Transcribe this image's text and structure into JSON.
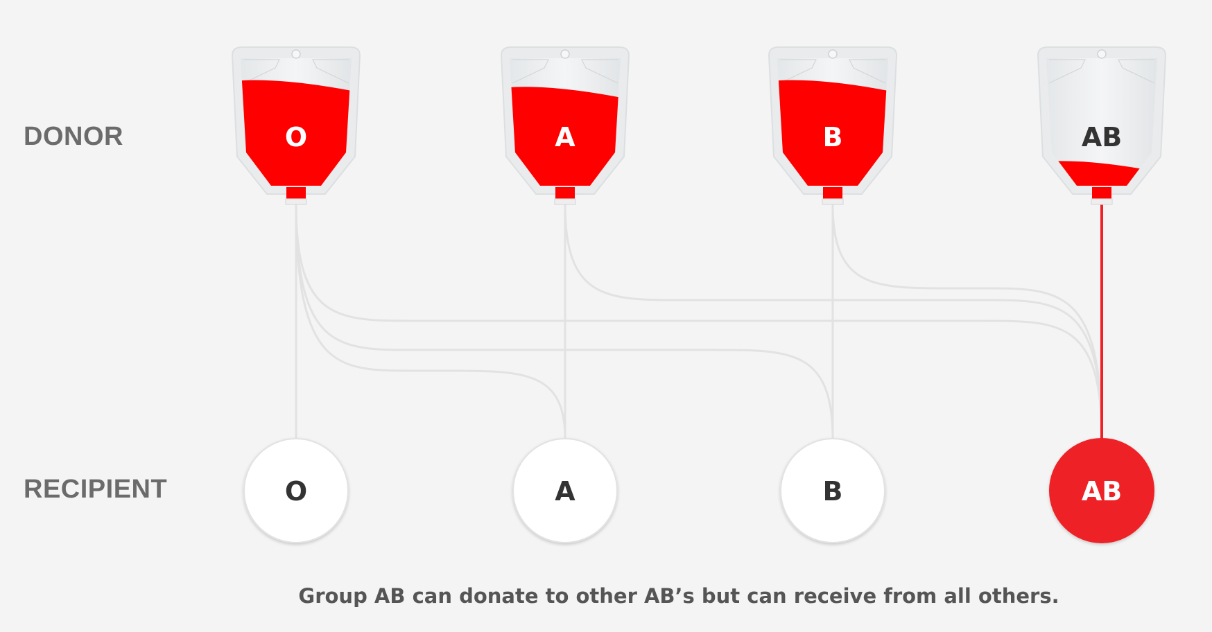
{
  "labels": {
    "donor": "DONOR",
    "recipient": "RECIPIENT"
  },
  "donors": [
    {
      "type": "O",
      "fill_level": 0.92
    },
    {
      "type": "A",
      "fill_level": 0.86
    },
    {
      "type": "B",
      "fill_level": 0.92
    },
    {
      "type": "AB",
      "fill_level": 0.2
    }
  ],
  "recipients": [
    {
      "type": "O",
      "highlighted": false
    },
    {
      "type": "A",
      "highlighted": false
    },
    {
      "type": "B",
      "highlighted": false
    },
    {
      "type": "AB",
      "highlighted": true
    }
  ],
  "connections": [
    {
      "from": "O",
      "to": "O",
      "highlighted": false
    },
    {
      "from": "O",
      "to": "A",
      "highlighted": false
    },
    {
      "from": "O",
      "to": "B",
      "highlighted": false
    },
    {
      "from": "O",
      "to": "AB",
      "highlighted": false
    },
    {
      "from": "A",
      "to": "A",
      "highlighted": false
    },
    {
      "from": "A",
      "to": "AB",
      "highlighted": false
    },
    {
      "from": "B",
      "to": "B",
      "highlighted": false
    },
    {
      "from": "B",
      "to": "AB",
      "highlighted": false
    },
    {
      "from": "AB",
      "to": "AB",
      "highlighted": true
    }
  ],
  "caption": "Group AB can donate to other AB’s but can receive from all others.",
  "colors": {
    "blood": "#ff0000",
    "highlight": "#ee2127",
    "line": "#e2e2e2",
    "bag": "#eceeef",
    "dark_text": "#333333",
    "label_gray": "#6b6b6b"
  }
}
